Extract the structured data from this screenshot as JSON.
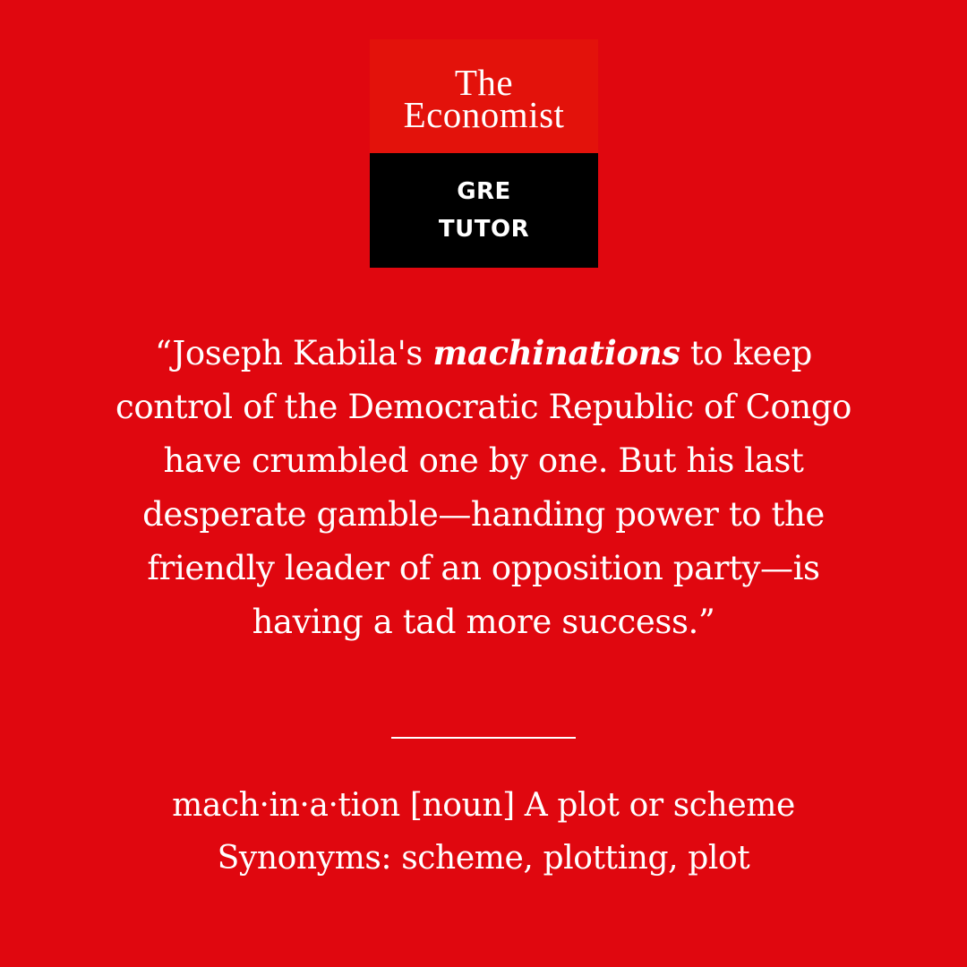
{
  "logo": {
    "line1": "The",
    "line2": "Economist",
    "sub1": "GRE",
    "sub2": "TUTOR"
  },
  "quote": {
    "open": "“Joseph Kabila's ",
    "highlight": "machinations",
    "rest": " to keep control of the Democratic Republic of Congo have crumbled one by one. But his last desperate gamble—handing power to the friendly leader of an opposition party—is having a tad more success.”"
  },
  "definition": {
    "line1": "mach·in·a·tion [noun] A plot or scheme",
    "line2": "Synonyms: scheme, plotting, plot"
  },
  "colors": {
    "background": "#e0070f",
    "logo_top": "#e3120b",
    "logo_bottom": "#000000",
    "text": "#ffffff"
  }
}
